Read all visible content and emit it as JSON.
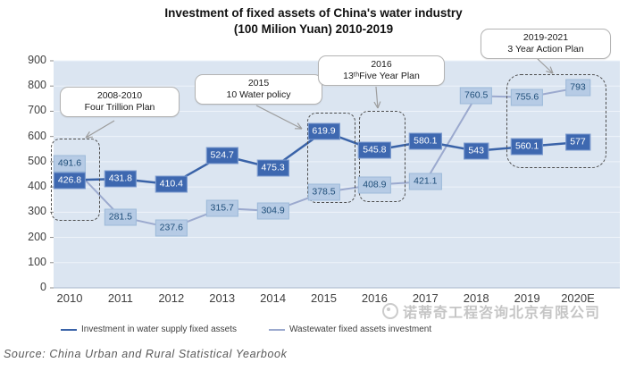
{
  "title": {
    "line1": "Investment of fixed assets of China's water industry",
    "line2": "(100 Milion Yuan) 2010-2019"
  },
  "chart_data": {
    "type": "line",
    "title": "Investment of fixed assets of China's water industry",
    "subtitle": "(100 Milion Yuan) 2010-2019",
    "categories": [
      "2010",
      "2011",
      "2012",
      "2013",
      "2014",
      "2015",
      "2016",
      "2017",
      "2018",
      "2019",
      "2020E"
    ],
    "series": [
      {
        "name": "Investment in water supply fixed assets",
        "color": "#3A63A8",
        "label_bg": "#3E68B0",
        "label_text": "#FFFFFF",
        "values": [
          426.8,
          431.8,
          410.4,
          524.7,
          475.3,
          619.9,
          545.8,
          580.1,
          543,
          560.1,
          577
        ]
      },
      {
        "name": "Wastewater fixed assets investment",
        "color": "#9BA9CE",
        "label_bg": "#B6CBE5",
        "label_text": "#1F4E79",
        "values": [
          491.6,
          281.5,
          237.6,
          315.7,
          304.9,
          378.5,
          408.9,
          421.1,
          760.5,
          755.6,
          793
        ]
      }
    ],
    "xlabel": "",
    "ylabel": "",
    "ylim": [
      0,
      900
    ],
    "yticks": [
      0,
      100,
      200,
      300,
      400,
      500,
      600,
      700,
      800,
      900
    ],
    "grid": true,
    "legend_position": "bottom",
    "plot_bg": "#dbe5f1",
    "gridline_color": "#eef3fa"
  },
  "annotations": [
    {
      "line1": "2008-2010",
      "line2": "Four Trillion Plan"
    },
    {
      "line1": "2015",
      "line2": "10 Water policy"
    },
    {
      "line1": "2016",
      "line2": "13ᵗʰFive Year Plan"
    },
    {
      "line1": "2019-2021",
      "line2": "3 Year Action Plan"
    }
  ],
  "watermark": {
    "text": "诺蒂奇工程咨询北京有限公司"
  },
  "source": "Source: China Urban and Rural Statistical Yearbook"
}
